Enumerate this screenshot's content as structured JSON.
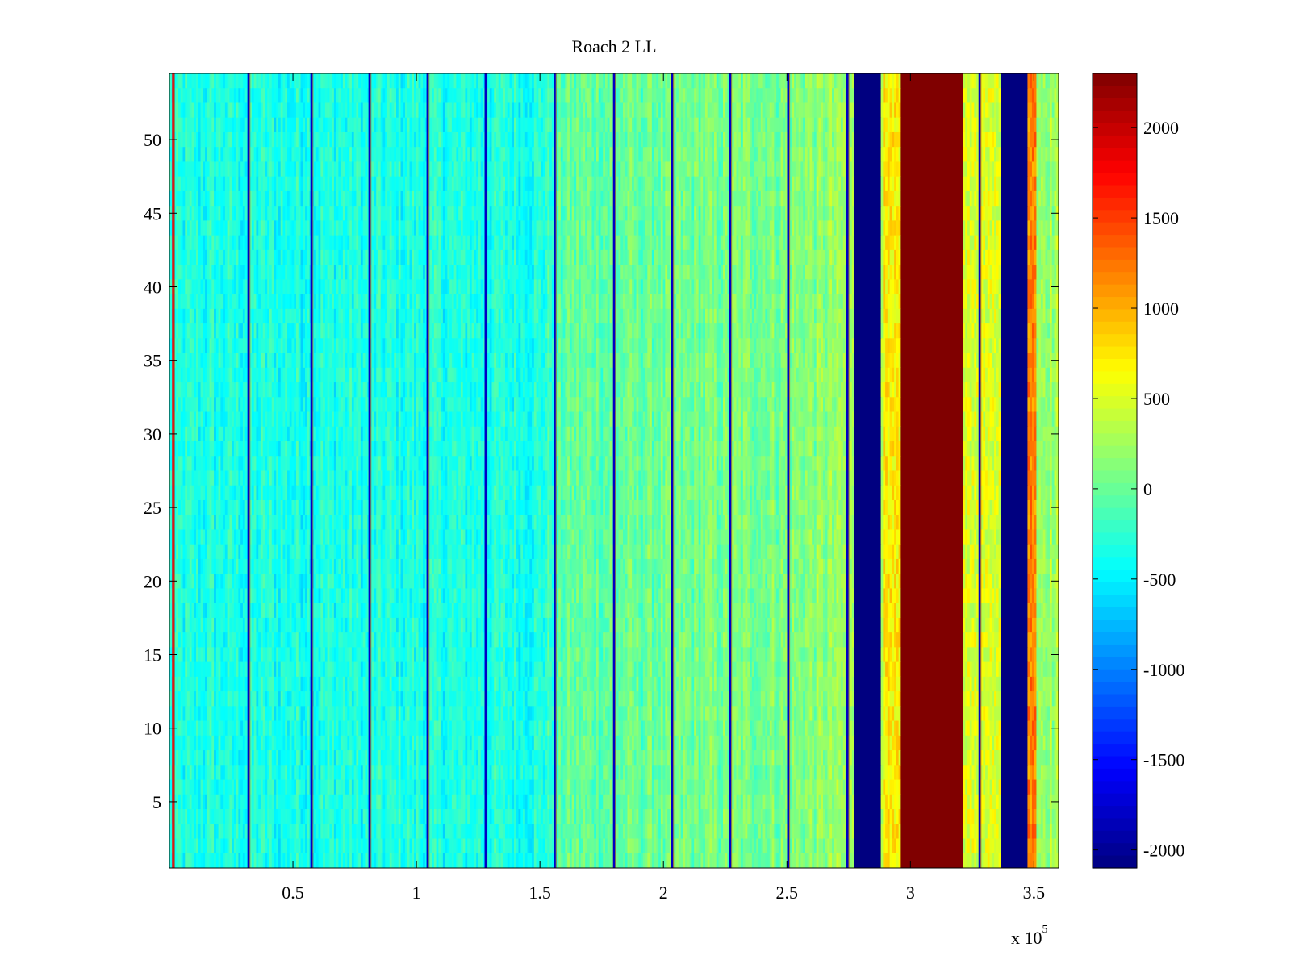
{
  "chart_data": {
    "type": "heatmap",
    "title": "Roach 2 LL",
    "xlabel": "",
    "ylabel": "",
    "xlim": [
      0,
      360000
    ],
    "ylim": [
      0.5,
      54.5
    ],
    "x_exponent_label": "x 10",
    "x_exponent_power": "5",
    "x_ticks": [
      {
        "value": 50000,
        "label": "0.5"
      },
      {
        "value": 100000,
        "label": "1"
      },
      {
        "value": 150000,
        "label": "1.5"
      },
      {
        "value": 200000,
        "label": "2"
      },
      {
        "value": 250000,
        "label": "2.5"
      },
      {
        "value": 300000,
        "label": "3"
      },
      {
        "value": 350000,
        "label": "3.5"
      }
    ],
    "y_ticks": [
      {
        "value": 5,
        "label": "5"
      },
      {
        "value": 10,
        "label": "10"
      },
      {
        "value": 15,
        "label": "15"
      },
      {
        "value": 20,
        "label": "20"
      },
      {
        "value": 25,
        "label": "25"
      },
      {
        "value": 30,
        "label": "30"
      },
      {
        "value": 35,
        "label": "35"
      },
      {
        "value": 40,
        "label": "40"
      },
      {
        "value": 45,
        "label": "45"
      },
      {
        "value": 50,
        "label": "50"
      }
    ],
    "rows": 54,
    "colormap": "jet",
    "clim": [
      -2100,
      2300
    ],
    "colorbar_ticks": [
      {
        "value": 2000,
        "label": "2000"
      },
      {
        "value": 1500,
        "label": "1500"
      },
      {
        "value": 1000,
        "label": "1000"
      },
      {
        "value": 500,
        "label": "500"
      },
      {
        "value": 0,
        "label": "0"
      },
      {
        "value": -500,
        "label": "-500"
      },
      {
        "value": -1000,
        "label": "-1000"
      },
      {
        "value": -1500,
        "label": "-1500"
      },
      {
        "value": -2000,
        "label": "-2000"
      }
    ],
    "background_profile": [
      {
        "x": 0,
        "value": -350
      },
      {
        "x": 150000,
        "value": -330
      },
      {
        "x": 160000,
        "value": -50
      },
      {
        "x": 250000,
        "value": 80
      },
      {
        "x": 276000,
        "value": 200
      },
      {
        "x": 360000,
        "value": 250
      }
    ],
    "bands": [
      {
        "x_start": 277000,
        "x_end": 288000,
        "value": -2100
      },
      {
        "x_start": 289000,
        "x_end": 296000,
        "value": 700
      },
      {
        "x_start": 296500,
        "x_end": 321000,
        "value": 2300
      },
      {
        "x_start": 321000,
        "x_end": 336500,
        "value": 500
      },
      {
        "x_start": 336500,
        "x_end": 347500,
        "value": -2100
      },
      {
        "x_start": 347500,
        "x_end": 351000,
        "value": 1200
      }
    ],
    "spike_lines": [
      {
        "x": 1500,
        "value": 1800
      },
      {
        "x": 32000,
        "value": -1800
      },
      {
        "x": 57500,
        "value": -1800
      },
      {
        "x": 81000,
        "value": -1800
      },
      {
        "x": 104500,
        "value": -1800
      },
      {
        "x": 128000,
        "value": -1800
      },
      {
        "x": 156000,
        "value": -1800
      },
      {
        "x": 180000,
        "value": -1800
      },
      {
        "x": 203500,
        "value": -1800
      },
      {
        "x": 227000,
        "value": -1800
      },
      {
        "x": 250500,
        "value": -1800
      },
      {
        "x": 274500,
        "value": -1800
      },
      {
        "x": 328000,
        "value": -1800
      }
    ]
  }
}
